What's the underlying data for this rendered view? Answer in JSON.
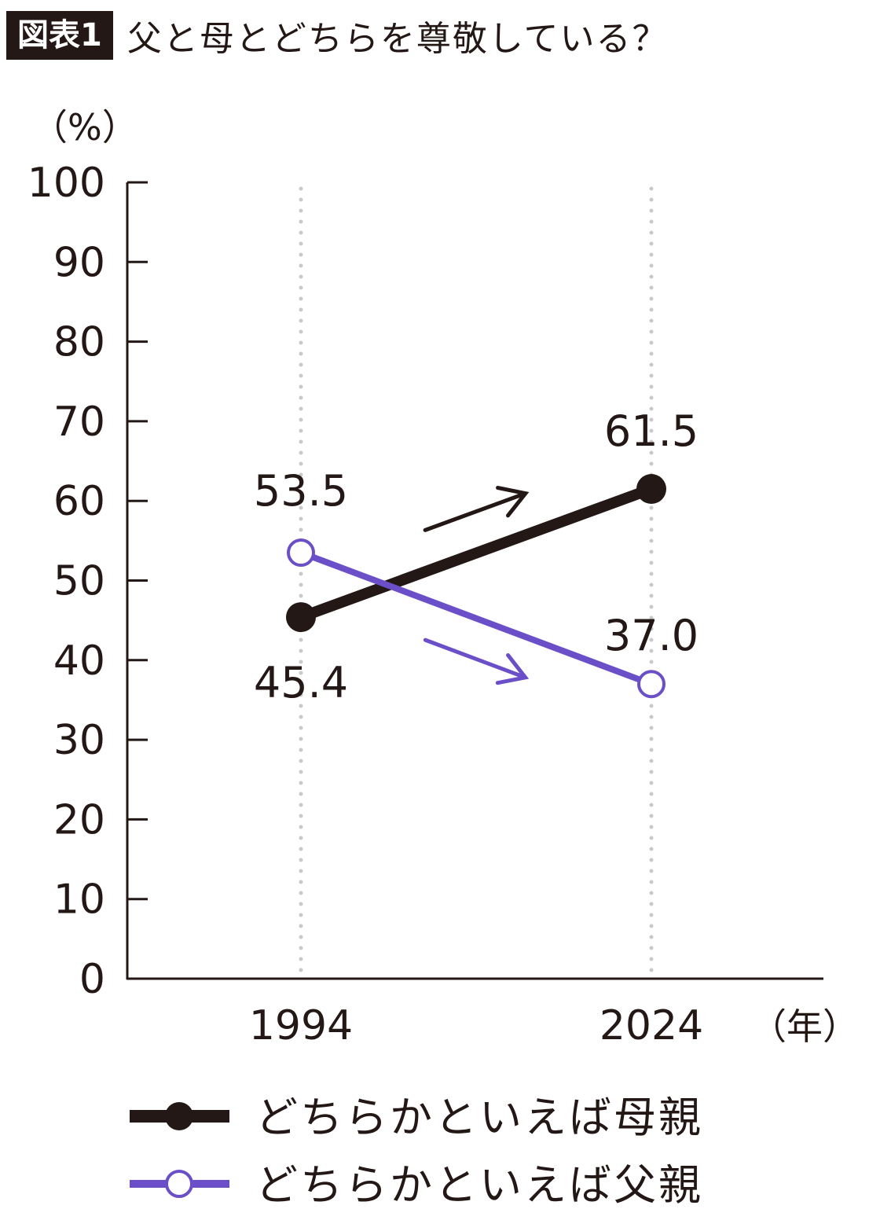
{
  "header": {
    "badge": "図表1",
    "title": "父と母とどちらを尊敬している？"
  },
  "chart_data": {
    "type": "line",
    "title": "父と母とどちらを尊敬している？",
    "ylabel": "（%）",
    "xlabel": "（年）",
    "ylim": [
      0,
      100
    ],
    "yticks": [
      "0",
      "10",
      "20",
      "30",
      "40",
      "50",
      "60",
      "70",
      "80",
      "90",
      "100"
    ],
    "categories": [
      "1994",
      "2024"
    ],
    "series": [
      {
        "name": "どちらかといえば母親",
        "values": [
          45.4,
          61.5
        ],
        "labels": [
          "45.4",
          "61.5"
        ],
        "color": "#231815",
        "marker": "filled-circle",
        "trend": "up"
      },
      {
        "name": "どちらかといえば父親",
        "values": [
          53.5,
          37.0
        ],
        "labels": [
          "53.5",
          "37.0"
        ],
        "color": "#6a4fc8",
        "marker": "open-circle",
        "trend": "down"
      }
    ],
    "grid": "vertical-dotted",
    "legend": "bottom"
  }
}
